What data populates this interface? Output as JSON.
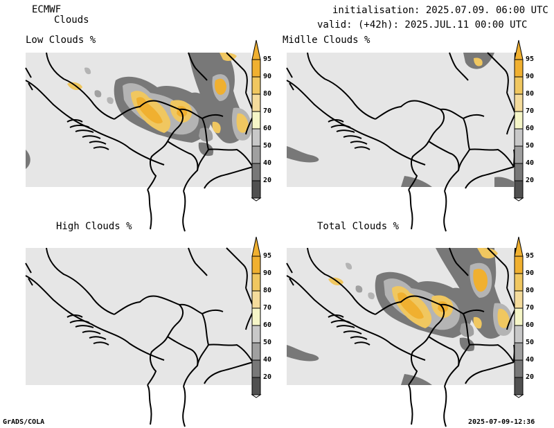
{
  "header": {
    "model": "ECMWF",
    "product": "Clouds",
    "init": "initialisation: 2025.07.09. 06:00 UTC",
    "valid": "valid: (+42h): 2025.JUL.11 00:00 UTC"
  },
  "panels": [
    {
      "title": "Low Clouds %"
    },
    {
      "title": "Midlle Clouds %"
    },
    {
      "title": "High Clouds %"
    },
    {
      "title": "Total Clouds %"
    }
  ],
  "colorbar": {
    "labels": [
      "95",
      "90",
      "80",
      "70",
      "60",
      "50",
      "40",
      "20"
    ],
    "colors": [
      "#f0b030",
      "#f0c760",
      "#f5dc9c",
      "#f6f6c8",
      "#c8c8c8",
      "#a0a0a0",
      "#787878",
      "#505050"
    ]
  },
  "footer": {
    "left": "GrADS/COLA",
    "right": "2025-07-09-12:36"
  }
}
